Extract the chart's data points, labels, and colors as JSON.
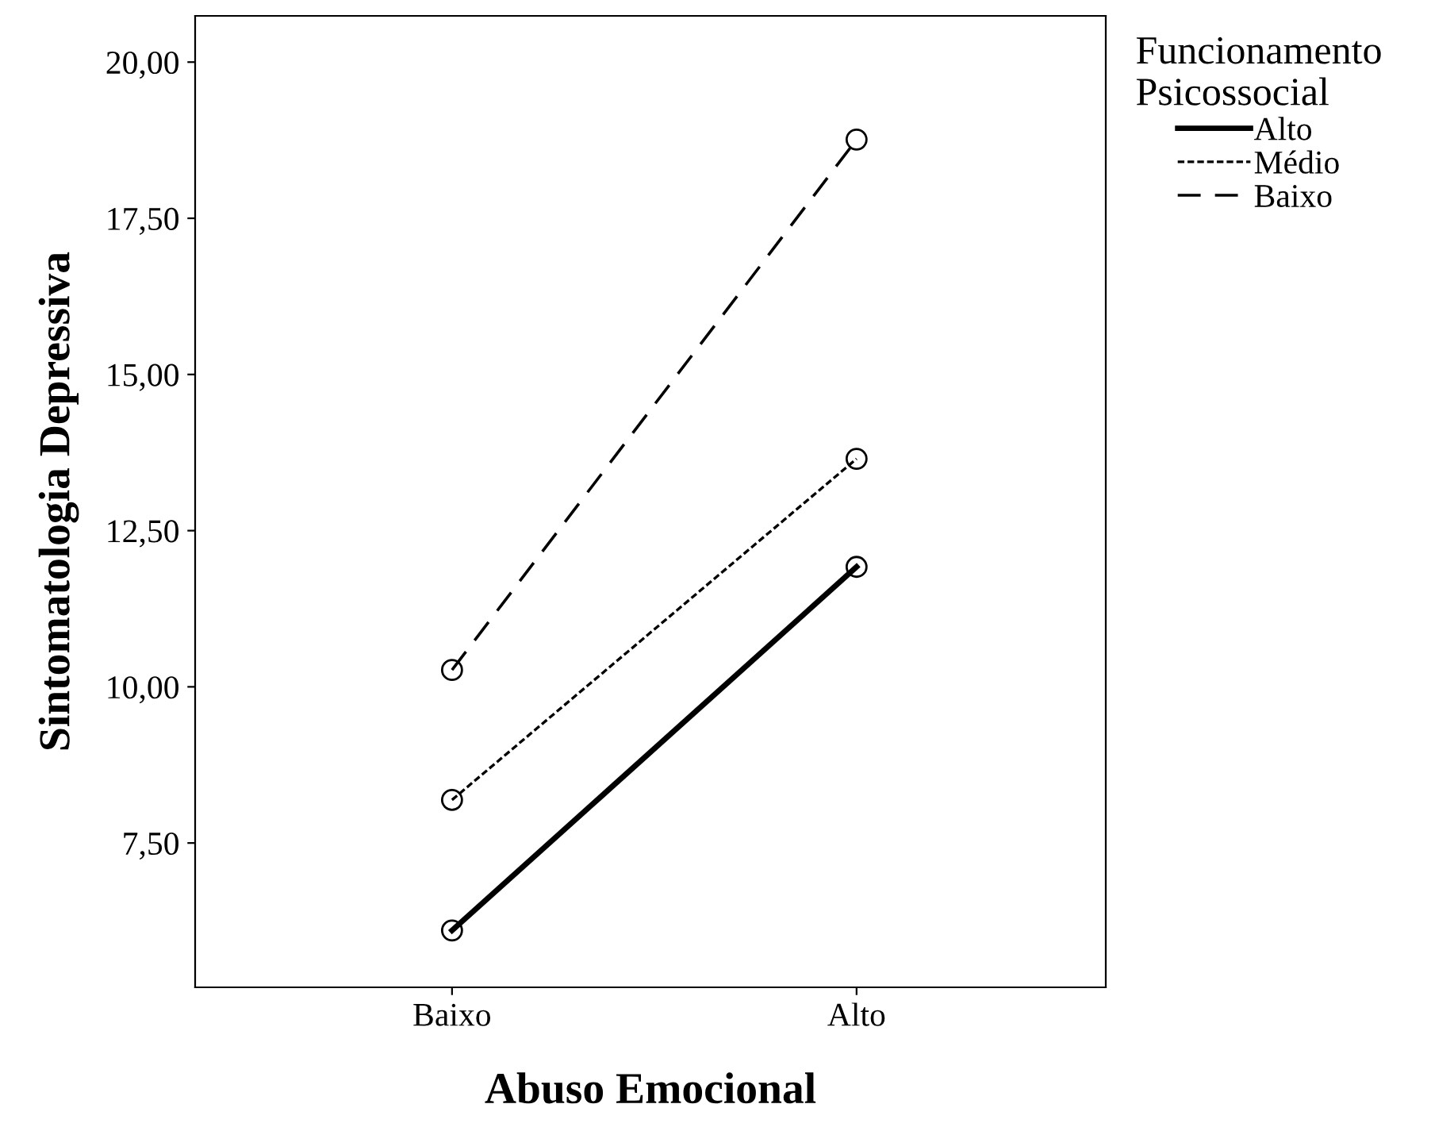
{
  "chart_data": {
    "type": "line",
    "xlabel": "Abuso Emocional",
    "ylabel": "Sintomatologia Depressiva",
    "legend_title": "Funcionamento\nPsicossocial",
    "categories": [
      "Baixo",
      "Alto"
    ],
    "series": [
      {
        "name": "Alto",
        "color": "#000000",
        "values": [
          6.1,
          11.92
        ],
        "line_style": "solid"
      },
      {
        "name": "Médio",
        "color": "#000000",
        "values": [
          8.19,
          13.65
        ],
        "line_style": "dotted"
      },
      {
        "name": "Baixo",
        "color": "#000000",
        "values": [
          10.27,
          18.76
        ],
        "line_style": "dashed"
      }
    ],
    "ylim": [
      5.19,
      20.74
    ],
    "yticks": [
      {
        "value": 7.5,
        "label": "7,50"
      },
      {
        "value": 10,
        "label": "10,00"
      },
      {
        "value": 12.5,
        "label": "12,50"
      },
      {
        "value": 15,
        "label": "15,00"
      },
      {
        "value": 17.5,
        "label": "17,50"
      },
      {
        "value": 20,
        "label": "20,00"
      }
    ],
    "marker": "circle",
    "legend": "top right",
    "grid": false
  }
}
